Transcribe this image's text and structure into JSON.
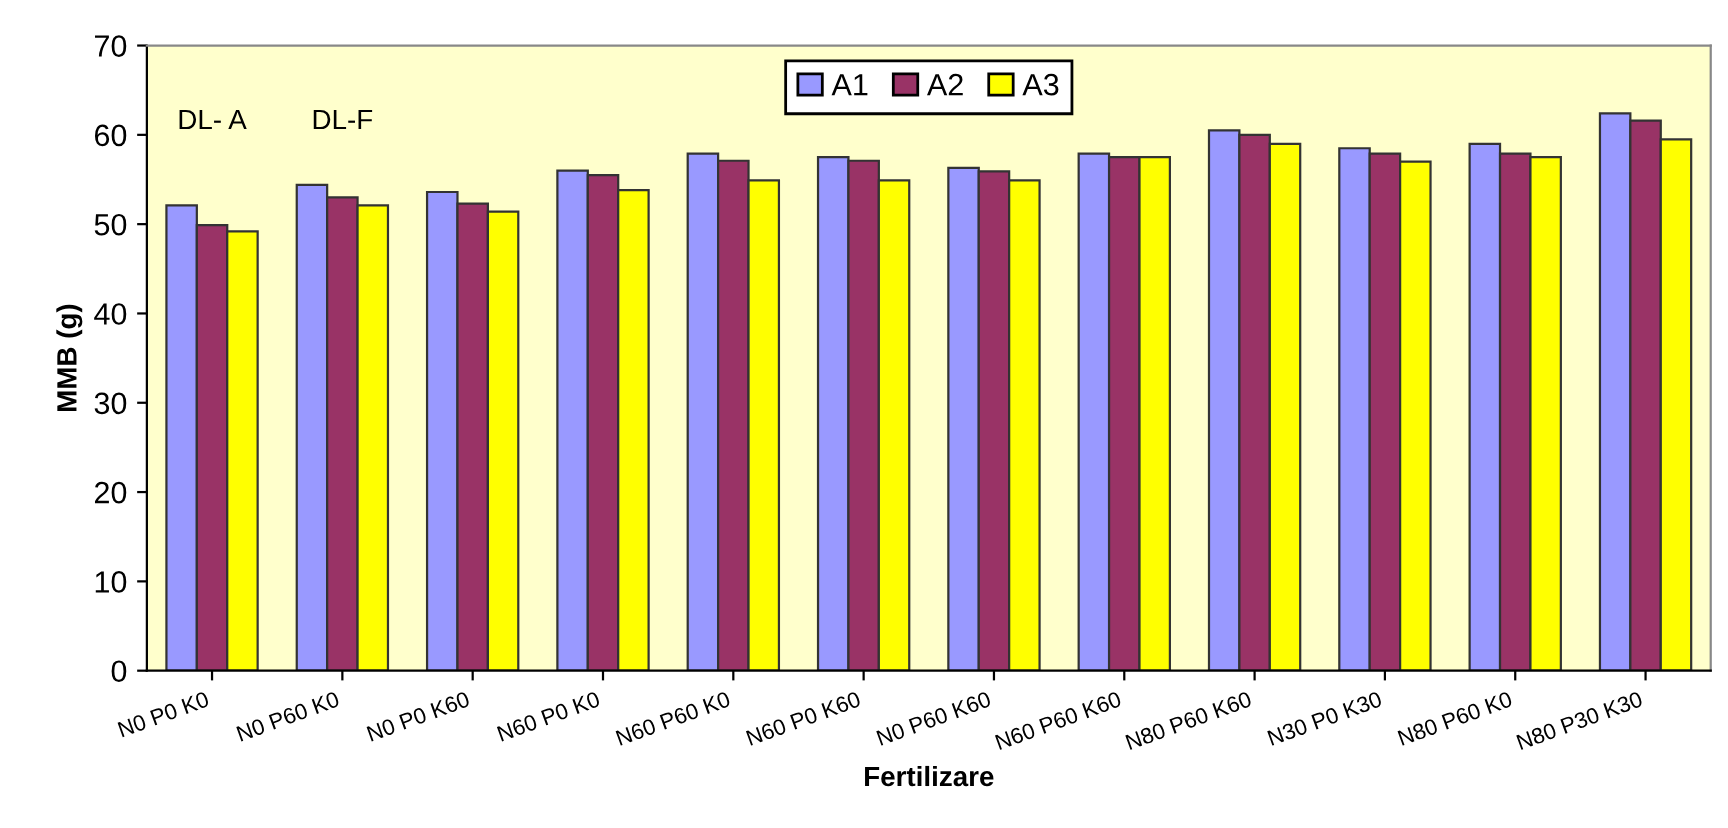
{
  "chart_data": {
    "type": "bar",
    "xlabel": "Fertilizare",
    "ylabel": "MMB (g)",
    "categories": [
      "N0 P0 K0",
      "N0 P60 K0",
      "N0 P0 K60",
      "N60 P0 K0",
      "N60 P60 K0",
      "N60 P0 K60",
      "N0 P60 K60",
      "N60 P60 K60",
      "N80 P60 K60",
      "N30 P0 K30",
      "N80 P60 K0",
      "N80 P30 K30"
    ],
    "series": [
      {
        "name": "A1",
        "color": "#9999ff",
        "values": [
          52.1,
          54.4,
          53.6,
          56.0,
          57.9,
          57.5,
          56.3,
          57.9,
          60.5,
          58.5,
          59.0,
          62.4
        ]
      },
      {
        "name": "A2",
        "color": "#993366",
        "values": [
          49.9,
          53.0,
          52.3,
          55.5,
          57.1,
          57.1,
          55.9,
          57.5,
          60.0,
          57.9,
          57.9,
          61.6
        ]
      },
      {
        "name": "A3",
        "color": "#ffff00",
        "values": [
          49.2,
          52.1,
          51.4,
          53.8,
          54.9,
          54.9,
          54.9,
          57.5,
          59.0,
          57.0,
          57.5,
          59.5
        ]
      }
    ],
    "annotations": [
      "DL- A",
      "DL-F"
    ],
    "ylim": [
      0,
      70
    ],
    "yticks": [
      0,
      10,
      20,
      30,
      40,
      50,
      60,
      70
    ],
    "grid": false,
    "legend": "top"
  }
}
